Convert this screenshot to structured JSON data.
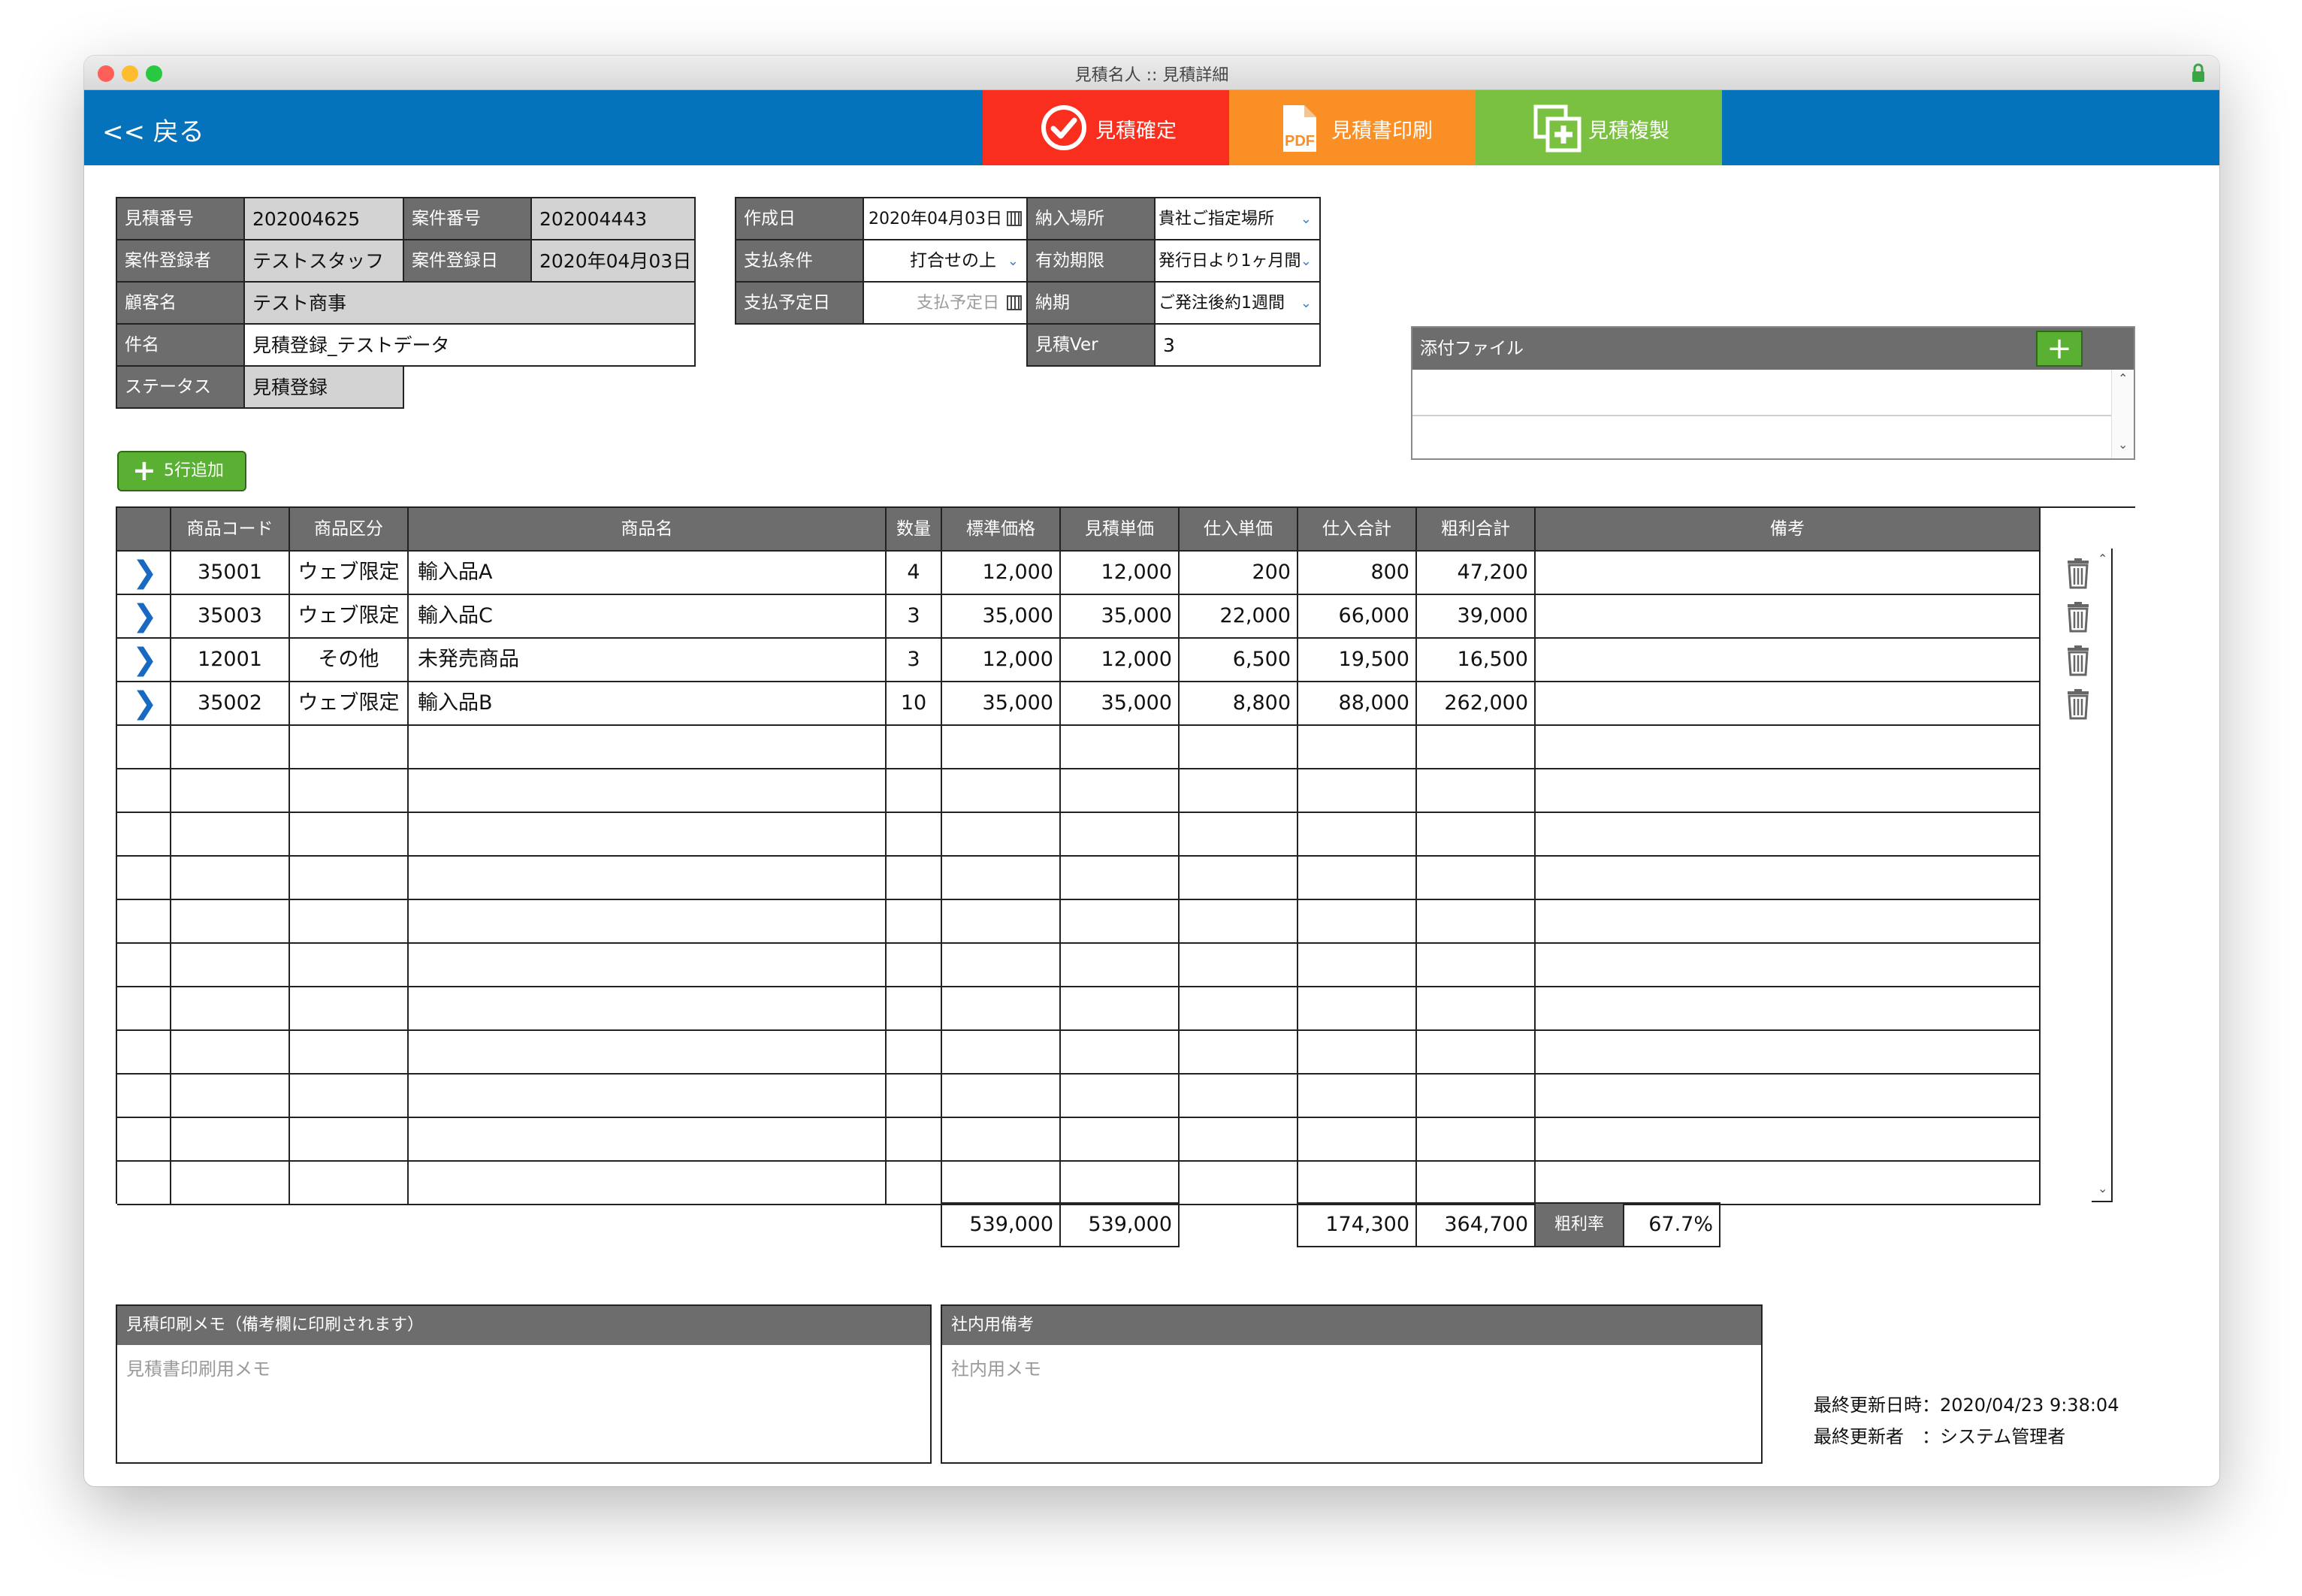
{
  "window": {
    "title": "見積名人 :: 見積詳細",
    "traffic_lights": {
      "close": "#fe5f57",
      "minimize": "#febc2e",
      "zoom": "#28c840"
    }
  },
  "header": {
    "back_label": "<< 戻る",
    "buttons": [
      {
        "label": "見積確定",
        "color": "#fa2e1e",
        "icon": "check-circle-icon"
      },
      {
        "label": "見積書印刷",
        "color": "#fa8f26",
        "icon": "pdf-icon",
        "icon_text": "PDF"
      },
      {
        "label": "見積複製",
        "color": "#7bc141",
        "icon": "duplicate-icon"
      }
    ]
  },
  "info_left": {
    "estimate_no_label": "見積番号",
    "estimate_no": "202004625",
    "case_no_label": "案件番号",
    "case_no": "202004443",
    "registrant_label": "案件登録者",
    "registrant": "テストスタッフ",
    "registered_date_label": "案件登録日",
    "registered_date": "2020年04月03日",
    "customer_label": "顧客名",
    "customer": "テスト商事",
    "subject_label": "件名",
    "subject": "見積登録_テストデータ",
    "status_label": "ステータス",
    "status": "見積登録"
  },
  "info_mid": {
    "created_label": "作成日",
    "created": "2020年04月03日",
    "payment_terms_label": "支払条件",
    "payment_terms": "打合せの上",
    "payment_date_label": "支払予定日",
    "payment_date_placeholder": "支払予定日",
    "delivery_place_label": "納入場所",
    "delivery_place": "貴社ご指定場所",
    "validity_label": "有効期限",
    "validity": "発行日より1ヶ月間",
    "delivery_term_label": "納期",
    "delivery_term": "ご発注後約1週間",
    "version_label": "見積Ver",
    "version": "3"
  },
  "attachments": {
    "label": "添付ファイル"
  },
  "add_rows_label": "5行追加",
  "table": {
    "headers": [
      "商品コード",
      "商品区分",
      "商品名",
      "数量",
      "標準価格",
      "見積単価",
      "仕入単価",
      "仕入合計",
      "粗利合計",
      "備考"
    ],
    "rows": [
      {
        "code": "35001",
        "category": "ウェブ限定",
        "name": "輸入品A",
        "qty": "4",
        "std_price": "12,000",
        "unit_price": "12,000",
        "cost": "200",
        "cost_total": "800",
        "profit": "47,200",
        "note": ""
      },
      {
        "code": "35003",
        "category": "ウェブ限定",
        "name": "輸入品C",
        "qty": "3",
        "std_price": "35,000",
        "unit_price": "35,000",
        "cost": "22,000",
        "cost_total": "66,000",
        "profit": "39,000",
        "note": ""
      },
      {
        "code": "12001",
        "category": "その他",
        "name": "未発売商品",
        "qty": "3",
        "std_price": "12,000",
        "unit_price": "12,000",
        "cost": "6,500",
        "cost_total": "19,500",
        "profit": "16,500",
        "note": ""
      },
      {
        "code": "35002",
        "category": "ウェブ限定",
        "name": "輸入品B",
        "qty": "10",
        "std_price": "35,000",
        "unit_price": "35,000",
        "cost": "8,800",
        "cost_total": "88,000",
        "profit": "262,000",
        "note": ""
      }
    ],
    "empty_rows": 11
  },
  "totals": {
    "std_total": "539,000",
    "quote_total": "539,000",
    "cost_total": "174,300",
    "profit_total": "364,700",
    "margin_label": "粗利率",
    "margin": "67.7%"
  },
  "memos": {
    "print_memo_label": "見積印刷メモ（備考欄に印刷されます）",
    "print_memo_placeholder": "見積書印刷用メモ",
    "internal_memo_label": "社内用備考",
    "internal_memo_placeholder": "社内用メモ"
  },
  "footer": {
    "last_updated": "最終更新日時：2020/04/23 9:38:04",
    "last_updater": "最終更新者　：システム管理者"
  },
  "colors": {
    "header_bg": "#0573bc",
    "label_bg": "#6d6d6d",
    "accent_green": "#5ab033",
    "arrow_blue": "#1769c2"
  }
}
